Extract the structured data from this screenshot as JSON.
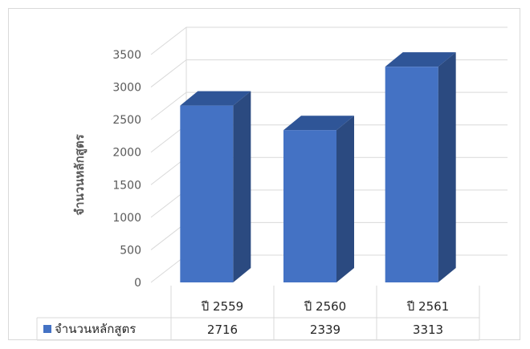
{
  "chart_data": {
    "type": "bar",
    "style": "3d-column-with-data-table",
    "categories": [
      "ปี 2559",
      "ปี 2560",
      "ปี 2561"
    ],
    "series": [
      {
        "name": "จำนวนหลักสูตร",
        "values": [
          2716,
          2339,
          3313
        ]
      }
    ],
    "y_ticks": [
      "0",
      "500",
      "1000",
      "1500",
      "2000",
      "2500",
      "3000",
      "3500"
    ],
    "ylabel": "จำนวนหลักสูตร",
    "ylim": [
      0,
      3500
    ],
    "grid": true,
    "legend": "data-table-left",
    "colors": {
      "front": "#4472c4",
      "top": "#2f5597",
      "side": "#2b4a80",
      "grid": "#d9d9d9",
      "text": "#595959"
    }
  }
}
